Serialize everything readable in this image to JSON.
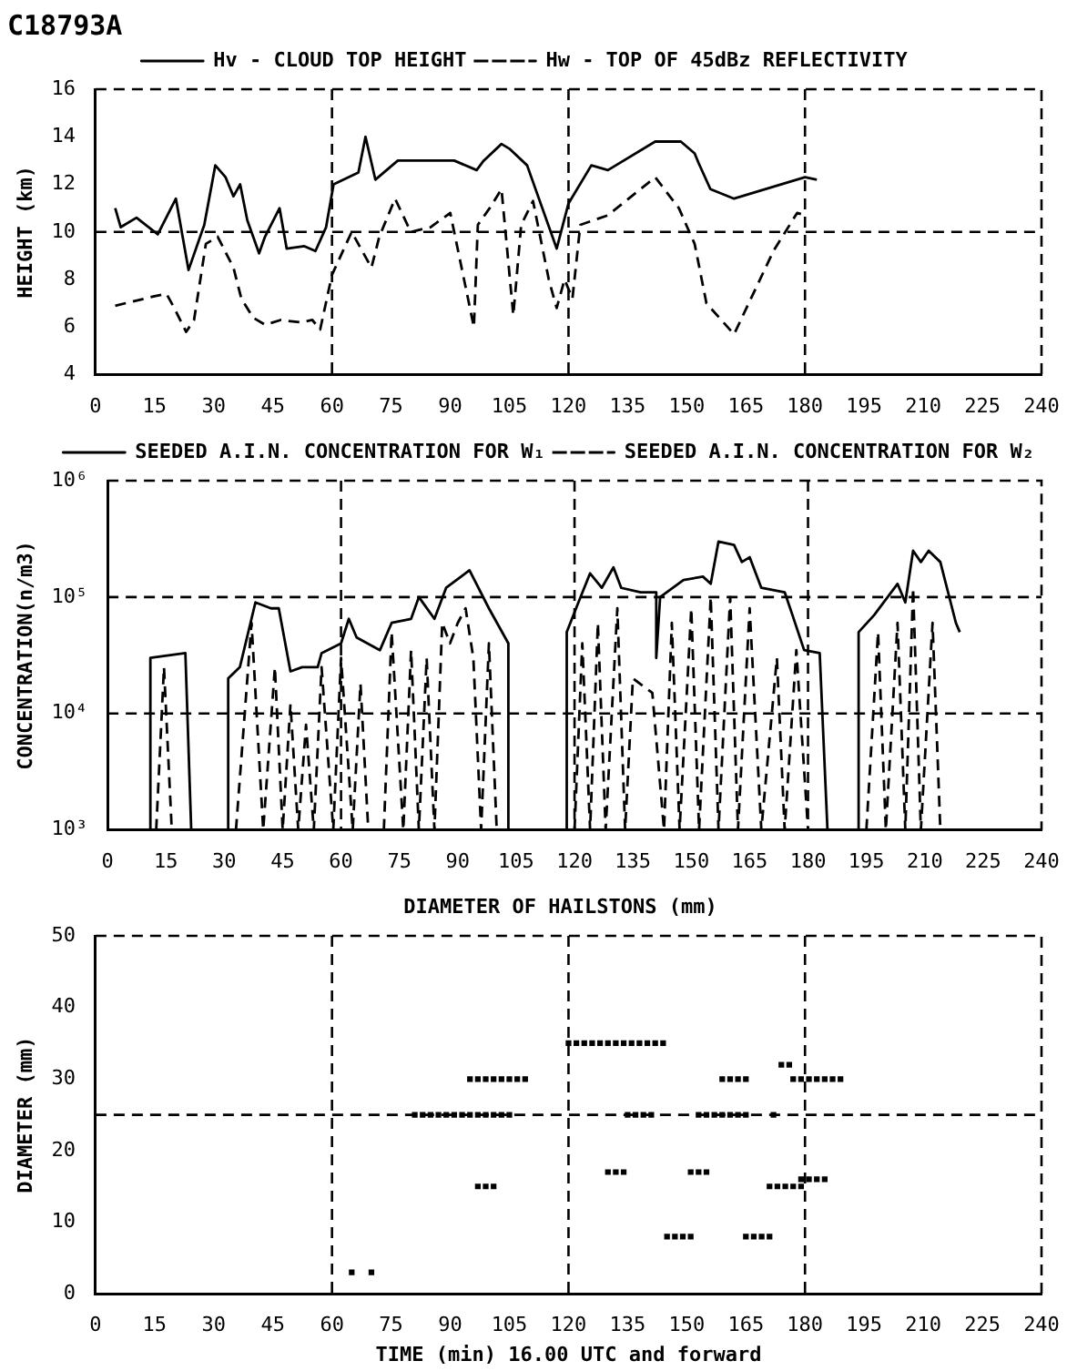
{
  "chart_data": [
    {
      "type": "line",
      "title": "C18793A",
      "ylabel": "HEIGHT (km)",
      "legend": "top",
      "line_style": "solid",
      "xlim": [
        0,
        240
      ],
      "xticks": [
        0,
        15,
        30,
        45,
        60,
        75,
        90,
        105,
        120,
        135,
        150,
        165,
        180,
        195,
        210,
        225,
        240
      ],
      "ylim": [
        4,
        16
      ],
      "yticks": [
        4,
        6,
        8,
        10,
        12,
        14,
        16
      ],
      "ref_lines": [
        {
          "axis": "x",
          "value": 60,
          "line_style": "dashed"
        },
        {
          "axis": "x",
          "value": 120,
          "line_style": "dashed"
        },
        {
          "axis": "x",
          "value": 180,
          "line_style": "dashed"
        },
        {
          "axis": "y",
          "value": 10,
          "line_style": "dashed"
        }
      ],
      "series": [
        {
          "name": "Hv - CLOUD TOP HEIGHT",
          "color": "#000000",
          "x": [
            5,
            6.4,
            10.4,
            15.8,
            20.4,
            23.6,
            27.6,
            30.4,
            33,
            35,
            36.7,
            38.5,
            41.5,
            43,
            46.7,
            48.5,
            53,
            55.8,
            58.5,
            60.4,
            66.7,
            68.5,
            71,
            76.7,
            91,
            96.7,
            98.5,
            103,
            105,
            109.5,
            117,
            120,
            125.8,
            130,
            142,
            148.5,
            152,
            153,
            156,
            162,
            180,
            183
          ],
          "values": [
            11,
            10.2,
            10.6,
            9.9,
            11.4,
            8.4,
            10.3,
            12.8,
            12.3,
            11.5,
            12,
            10.5,
            9.1,
            9.8,
            11,
            9.3,
            9.4,
            9.2,
            10.2,
            12,
            12.5,
            14,
            12.2,
            13,
            13,
            12.6,
            13,
            13.7,
            13.5,
            12.8,
            9.3,
            11.2,
            12.8,
            12.6,
            13.8,
            13.8,
            13.3,
            12.9,
            11.8,
            11.4,
            12.3,
            12.2
          ]
        },
        {
          "name": "Hw - TOP OF 45dBz REFLECTIVITY",
          "color": "#000000",
          "line_style": "dashed",
          "x": [
            5,
            10,
            15,
            18,
            20,
            23,
            25,
            28,
            31,
            35,
            37,
            40,
            43,
            47,
            52,
            55,
            57,
            60,
            65,
            70,
            72,
            76,
            80,
            85,
            90,
            96,
            97,
            100,
            103,
            106,
            108,
            111,
            115,
            117,
            119,
            121,
            123,
            130,
            142,
            148,
            152,
            155,
            162,
            172,
            178,
            180
          ],
          "values": [
            6.9,
            7.1,
            7.3,
            7.4,
            6.8,
            5.8,
            6.3,
            9.5,
            9.8,
            8.5,
            7.2,
            6.4,
            6.1,
            6.3,
            6.2,
            6.3,
            5.9,
            8.2,
            10,
            8.5,
            9.8,
            11.4,
            10,
            10.2,
            10.8,
            6,
            10.3,
            11,
            11.8,
            6.5,
            10.3,
            11.3,
            8,
            6.8,
            8,
            7.2,
            10.3,
            10.7,
            12.3,
            11,
            9.5,
            7,
            5.7,
            9.2,
            10.8,
            10.7
          ]
        }
      ]
    },
    {
      "type": "line",
      "ylabel": "CONCENTRATION(n/m3)",
      "legend": "top right",
      "log": "y",
      "line_style": "solid",
      "xlim": [
        0,
        240
      ],
      "xticks": [
        0,
        15,
        30,
        45,
        60,
        75,
        90,
        105,
        120,
        135,
        150,
        165,
        180,
        195,
        210,
        225,
        240
      ],
      "ylim": [
        1000,
        1000000
      ],
      "yticks": [
        {
          "value": 1000,
          "label": "10³"
        },
        {
          "value": 10000,
          "label": "10⁴"
        },
        {
          "value": 100000,
          "label": "10⁵"
        },
        {
          "value": 1000000,
          "label": "10⁶"
        }
      ],
      "ref_lines": [
        {
          "axis": "x",
          "value": 60,
          "line_style": "dashed"
        },
        {
          "axis": "x",
          "value": 120,
          "line_style": "dashed"
        },
        {
          "axis": "x",
          "value": 180,
          "line_style": "dashed"
        },
        {
          "axis": "y",
          "value": 10000,
          "line_style": "dashed"
        },
        {
          "axis": "y",
          "value": 100000,
          "line_style": "dashed"
        }
      ],
      "series": [
        {
          "name": "SEEDED A.I.N. CONCENTRATION FOR W₁",
          "color": "#000000",
          "x": [
            11,
            11,
            20,
            21.5,
            26,
            31,
            31,
            34,
            38,
            42,
            44,
            47,
            50,
            54,
            55,
            60,
            62,
            64,
            70,
            73,
            78,
            80,
            84,
            87,
            93,
            98,
            103,
            103,
            110,
            118,
            118,
            121,
            124,
            127,
            130,
            132,
            137,
            141,
            141,
            142,
            148,
            153,
            155,
            157,
            161,
            163,
            165,
            168,
            174,
            176,
            179,
            183,
            185,
            189,
            193,
            193,
            197,
            203,
            205,
            207,
            209,
            211,
            214,
            218,
            219
          ],
          "values": [
            1000,
            30000,
            33000,
            1000,
            null,
            1000,
            20000,
            25000,
            90000,
            80000,
            80000,
            23000,
            25000,
            25000,
            33000,
            40000,
            65000,
            45000,
            35000,
            60000,
            65000,
            100000,
            65000,
            120000,
            170000,
            80000,
            40000,
            1000,
            null,
            1000,
            50000,
            90000,
            160000,
            120000,
            180000,
            120000,
            110000,
            110000,
            30000,
            100000,
            140000,
            150000,
            130000,
            300000,
            280000,
            200000,
            220000,
            120000,
            110000,
            70000,
            35000,
            33000,
            1000,
            null,
            1000,
            50000,
            70000,
            130000,
            90000,
            250000,
            200000,
            250000,
            200000,
            60000,
            50000
          ]
        },
        {
          "name": "SEEDED A.I.N. CONCENTRATION FOR W₂",
          "color": "#000000",
          "line_style": "dashed",
          "x": [
            12.5,
            14.5,
            16.5,
            25,
            33,
            37,
            40,
            43,
            45,
            47,
            49,
            51,
            53,
            55,
            58,
            60,
            63,
            65,
            67,
            70,
            71,
            73,
            76,
            78,
            80,
            82,
            84,
            86,
            88,
            90,
            92,
            94,
            96,
            98,
            100,
            110,
            120,
            122,
            124,
            126,
            128,
            131,
            133,
            135,
            140,
            143,
            145,
            147,
            150,
            152,
            155,
            157,
            160,
            162,
            165,
            168,
            172,
            174,
            177,
            180,
            188,
            195,
            198,
            200,
            203,
            205,
            207,
            209,
            212,
            214
          ],
          "values": [
            1000,
            25000,
            1000,
            null,
            1000,
            60000,
            1000,
            25000,
            1000,
            12000,
            1000,
            8000,
            1000,
            25000,
            1000,
            30000,
            1000,
            18000,
            1000,
            null,
            1000,
            50000,
            1000,
            35000,
            1000,
            30000,
            1000,
            60000,
            40000,
            60000,
            80000,
            30000,
            1000,
            40000,
            1000,
            null,
            1000,
            40000,
            1000,
            60000,
            1000,
            80000,
            1000,
            20000,
            15000,
            1000,
            60000,
            1000,
            80000,
            1000,
            100000,
            1000,
            100000,
            1000,
            80000,
            1000,
            30000,
            1000,
            35000,
            1000,
            null,
            1000,
            50000,
            1000,
            60000,
            1000,
            120000,
            1000,
            60000,
            1000
          ]
        }
      ]
    },
    {
      "type": "scatter",
      "ylabel": "DIAMETER (mm)",
      "xlabel": "TIME (min) 16.00 UTC and forward",
      "legend": "top",
      "marker": "square",
      "xlim": [
        0,
        240
      ],
      "xticks": [
        0,
        15,
        30,
        45,
        60,
        75,
        90,
        105,
        120,
        135,
        150,
        165,
        180,
        195,
        210,
        225,
        240
      ],
      "ylim": [
        0,
        50
      ],
      "yticks": [
        0,
        10,
        20,
        30,
        40,
        50
      ],
      "ref_lines": [
        {
          "axis": "x",
          "value": 60,
          "line_style": "dashed"
        },
        {
          "axis": "x",
          "value": 120,
          "line_style": "dashed"
        },
        {
          "axis": "x",
          "value": 180,
          "line_style": "dashed"
        },
        {
          "axis": "y",
          "value": 25,
          "line_style": "dashed"
        }
      ],
      "series": [
        {
          "name": "DIAMETER OF HAILSTONS (mm)",
          "color": "#000000",
          "x": [
            65,
            70,
            81,
            83,
            85,
            87,
            89,
            91,
            93,
            95,
            97,
            99,
            101,
            103,
            105,
            135,
            137,
            139,
            141,
            153,
            155,
            157,
            159,
            161,
            163,
            165,
            172,
            95,
            97,
            99,
            101,
            103,
            105,
            107,
            109,
            159,
            161,
            163,
            165,
            177,
            179,
            181,
            183,
            185,
            187,
            189,
            97,
            99,
            101,
            171,
            173,
            175,
            177,
            179,
            120,
            122,
            124,
            126,
            128,
            130,
            132,
            134,
            136,
            138,
            140,
            142,
            144,
            130,
            132,
            134,
            151,
            153,
            155,
            145,
            147,
            149,
            151,
            165,
            167,
            169,
            171,
            174,
            176,
            179,
            181,
            183,
            185
          ],
          "values": [
            3,
            3,
            25,
            25,
            25,
            25,
            25,
            25,
            25,
            25,
            25,
            25,
            25,
            25,
            25,
            25,
            25,
            25,
            25,
            25,
            25,
            25,
            25,
            25,
            25,
            25,
            25,
            30,
            30,
            30,
            30,
            30,
            30,
            30,
            30,
            30,
            30,
            30,
            30,
            30,
            30,
            30,
            30,
            30,
            30,
            30,
            15,
            15,
            15,
            15,
            15,
            15,
            15,
            15,
            35,
            35,
            35,
            35,
            35,
            35,
            35,
            35,
            35,
            35,
            35,
            35,
            35,
            17,
            17,
            17,
            17,
            17,
            17,
            8,
            8,
            8,
            8,
            8,
            8,
            8,
            8,
            32,
            32,
            16,
            16,
            16,
            16
          ]
        }
      ]
    }
  ]
}
